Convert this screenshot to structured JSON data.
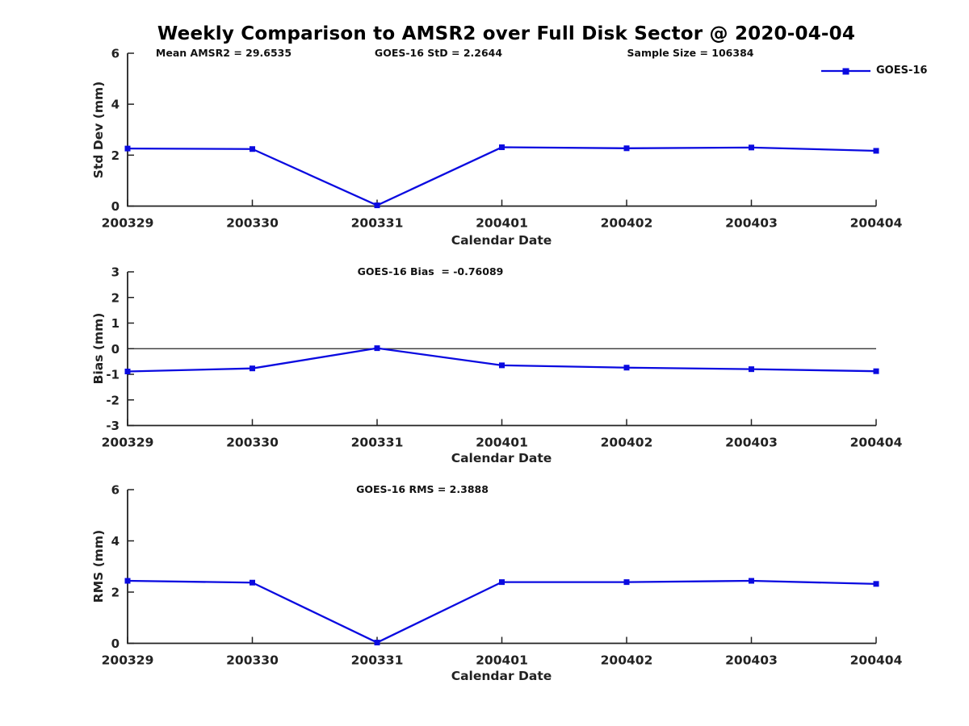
{
  "title": "Weekly Comparison to AMSR2 over Full Disk Sector @ 2020-04-04",
  "legend": {
    "label": "GOES-16",
    "position": "top-right"
  },
  "colors": {
    "line": "#0a0ae0",
    "axis": "#222222",
    "zero_line": "#222222",
    "text": "#222222"
  },
  "chart_data": [
    {
      "type": "line",
      "ylabel": "Std Dev (mm)",
      "xlabel": "Calendar Date",
      "categories": [
        "200329",
        "200330",
        "200331",
        "200401",
        "200402",
        "200403",
        "200404"
      ],
      "series": [
        {
          "name": "GOES-16",
          "values": [
            2.26,
            2.24,
            0.03,
            2.31,
            2.27,
            2.3,
            2.17
          ]
        }
      ],
      "ylim": [
        0,
        6
      ],
      "yticks": [
        0,
        2,
        4,
        6
      ],
      "grid": false,
      "annotations": {
        "mean": "Mean AMSR2 = 29.6535",
        "std": "GOES-16 StD = 2.2644",
        "sample": "Sample Size = 106384"
      }
    },
    {
      "type": "line",
      "ylabel": "Bias (mm)",
      "xlabel": "Calendar Date",
      "categories": [
        "200329",
        "200330",
        "200331",
        "200401",
        "200402",
        "200403",
        "200404"
      ],
      "series": [
        {
          "name": "GOES-16",
          "values": [
            -0.89,
            -0.77,
            0.02,
            -0.65,
            -0.74,
            -0.8,
            -0.88
          ]
        }
      ],
      "ylim": [
        -3,
        3
      ],
      "yticks": [
        -3,
        -2,
        -1,
        0,
        1,
        2,
        3
      ],
      "zero_line": true,
      "grid": false,
      "annotations": {
        "bias": "GOES-16 Bias  = -0.76089"
      }
    },
    {
      "type": "line",
      "ylabel": "RMS (mm)",
      "xlabel": "Calendar Date",
      "categories": [
        "200329",
        "200330",
        "200331",
        "200401",
        "200402",
        "200403",
        "200404"
      ],
      "series": [
        {
          "name": "GOES-16",
          "values": [
            2.44,
            2.37,
            0.03,
            2.39,
            2.39,
            2.44,
            2.32
          ]
        }
      ],
      "ylim": [
        0,
        6
      ],
      "yticks": [
        0,
        2,
        4,
        6
      ],
      "grid": false,
      "annotations": {
        "rms": "GOES-16 RMS = 2.3888"
      }
    }
  ]
}
